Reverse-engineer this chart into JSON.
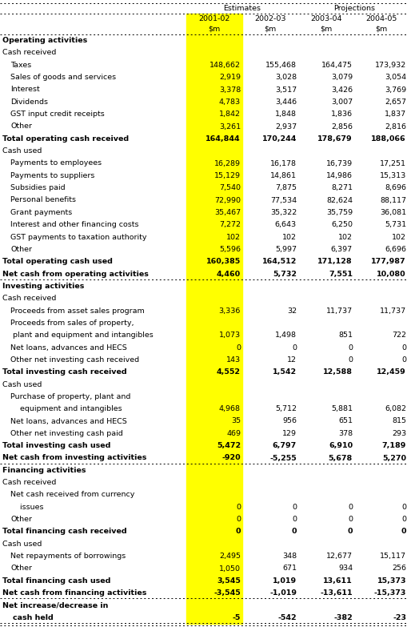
{
  "rows": [
    {
      "label": "Operating activities",
      "values": [
        "",
        "",
        "",
        ""
      ],
      "style": "bold_header",
      "indent": 0
    },
    {
      "label": "Cash received",
      "values": [
        "",
        "",
        "",
        ""
      ],
      "style": "normal",
      "indent": 0
    },
    {
      "label": "Taxes",
      "values": [
        "148,662",
        "155,468",
        "164,475",
        "173,932"
      ],
      "style": "normal",
      "indent": 1
    },
    {
      "label": "Sales of goods and services",
      "values": [
        "2,919",
        "3,028",
        "3,079",
        "3,054"
      ],
      "style": "normal",
      "indent": 1
    },
    {
      "label": "Interest",
      "values": [
        "3,378",
        "3,517",
        "3,426",
        "3,769"
      ],
      "style": "normal",
      "indent": 1
    },
    {
      "label": "Dividends",
      "values": [
        "4,783",
        "3,446",
        "3,007",
        "2,657"
      ],
      "style": "normal",
      "indent": 1
    },
    {
      "label": "GST input credit receipts",
      "values": [
        "1,842",
        "1,848",
        "1,836",
        "1,837"
      ],
      "style": "normal",
      "indent": 1
    },
    {
      "label": "Other",
      "values": [
        "3,261",
        "2,937",
        "2,856",
        "2,816"
      ],
      "style": "normal",
      "indent": 1
    },
    {
      "label": "Total operating cash received",
      "values": [
        "164,844",
        "170,244",
        "178,679",
        "188,066"
      ],
      "style": "bold",
      "indent": 0
    },
    {
      "label": "Cash used",
      "values": [
        "",
        "",
        "",
        ""
      ],
      "style": "normal",
      "indent": 0
    },
    {
      "label": "Payments to employees",
      "values": [
        "16,289",
        "16,178",
        "16,739",
        "17,251"
      ],
      "style": "normal",
      "indent": 1
    },
    {
      "label": "Payments to suppliers",
      "values": [
        "15,129",
        "14,861",
        "14,986",
        "15,313"
      ],
      "style": "normal",
      "indent": 1
    },
    {
      "label": "Subsidies paid",
      "values": [
        "7,540",
        "7,875",
        "8,271",
        "8,696"
      ],
      "style": "normal",
      "indent": 1
    },
    {
      "label": "Personal benefits",
      "values": [
        "72,990",
        "77,534",
        "82,624",
        "88,117"
      ],
      "style": "normal",
      "indent": 1
    },
    {
      "label": "Grant payments",
      "values": [
        "35,467",
        "35,322",
        "35,759",
        "36,081"
      ],
      "style": "normal",
      "indent": 1
    },
    {
      "label": "Interest and other financing costs",
      "values": [
        "7,272",
        "6,643",
        "6,250",
        "5,731"
      ],
      "style": "normal",
      "indent": 1
    },
    {
      "label": "GST payments to taxation authority",
      "values": [
        "102",
        "102",
        "102",
        "102"
      ],
      "style": "normal",
      "indent": 1
    },
    {
      "label": "Other",
      "values": [
        "5,596",
        "5,997",
        "6,397",
        "6,696"
      ],
      "style": "normal",
      "indent": 1
    },
    {
      "label": "Total operating cash used",
      "values": [
        "160,385",
        "164,512",
        "171,128",
        "177,987"
      ],
      "style": "bold",
      "indent": 0
    },
    {
      "label": "Net cash from operating activities",
      "values": [
        "4,460",
        "5,732",
        "7,551",
        "10,080"
      ],
      "style": "bold_line",
      "indent": 0
    },
    {
      "label": "Investing activities",
      "values": [
        "",
        "",
        "",
        ""
      ],
      "style": "bold_header",
      "indent": 0
    },
    {
      "label": "Cash received",
      "values": [
        "",
        "",
        "",
        ""
      ],
      "style": "normal",
      "indent": 0
    },
    {
      "label": "Proceeds from asset sales program",
      "values": [
        "3,336",
        "32",
        "11,737",
        "11,737"
      ],
      "style": "normal",
      "indent": 1
    },
    {
      "label": "Proceeds from sales of property,",
      "values": [
        "",
        "",
        "",
        ""
      ],
      "style": "normal",
      "indent": 1
    },
    {
      "label": " plant and equipment and intangibles",
      "values": [
        "1,073",
        "1,498",
        "851",
        "722"
      ],
      "style": "normal",
      "indent": 1
    },
    {
      "label": "Net loans, advances and HECS",
      "values": [
        "0",
        "0",
        "0",
        "0"
      ],
      "style": "normal",
      "indent": 1
    },
    {
      "label": "Other net investing cash received",
      "values": [
        "143",
        "12",
        "0",
        "0"
      ],
      "style": "normal",
      "indent": 1
    },
    {
      "label": "Total investing cash received",
      "values": [
        "4,552",
        "1,542",
        "12,588",
        "12,459"
      ],
      "style": "bold",
      "indent": 0
    },
    {
      "label": "Cash used",
      "values": [
        "",
        "",
        "",
        ""
      ],
      "style": "normal",
      "indent": 0
    },
    {
      "label": "Purchase of property, plant and",
      "values": [
        "",
        "",
        "",
        ""
      ],
      "style": "normal",
      "indent": 1
    },
    {
      "label": "    equipment and intangibles",
      "values": [
        "4,968",
        "5,712",
        "5,881",
        "6,082"
      ],
      "style": "normal",
      "indent": 1
    },
    {
      "label": "Net loans, advances and HECS",
      "values": [
        "35",
        "956",
        "651",
        "815"
      ],
      "style": "normal",
      "indent": 1
    },
    {
      "label": "Other net investing cash paid",
      "values": [
        "469",
        "129",
        "378",
        "293"
      ],
      "style": "normal",
      "indent": 1
    },
    {
      "label": "Total investing cash used",
      "values": [
        "5,472",
        "6,797",
        "6,910",
        "7,189"
      ],
      "style": "bold",
      "indent": 0
    },
    {
      "label": "Net cash from investing activities",
      "values": [
        "-920",
        "-5,255",
        "5,678",
        "5,270"
      ],
      "style": "bold_line",
      "indent": 0
    },
    {
      "label": "Financing activities",
      "values": [
        "",
        "",
        "",
        ""
      ],
      "style": "bold_header",
      "indent": 0
    },
    {
      "label": "Cash received",
      "values": [
        "",
        "",
        "",
        ""
      ],
      "style": "normal",
      "indent": 0
    },
    {
      "label": "Net cash received from currency",
      "values": [
        "",
        "",
        "",
        ""
      ],
      "style": "normal",
      "indent": 1
    },
    {
      "label": "    issues",
      "values": [
        "0",
        "0",
        "0",
        "0"
      ],
      "style": "normal",
      "indent": 1
    },
    {
      "label": "Other",
      "values": [
        "0",
        "0",
        "0",
        "0"
      ],
      "style": "normal",
      "indent": 1
    },
    {
      "label": "Total financing cash received",
      "values": [
        "0",
        "0",
        "0",
        "0"
      ],
      "style": "bold",
      "indent": 0
    },
    {
      "label": "Cash used",
      "values": [
        "",
        "",
        "",
        ""
      ],
      "style": "normal",
      "indent": 0
    },
    {
      "label": "Net repayments of borrowings",
      "values": [
        "2,495",
        "348",
        "12,677",
        "15,117"
      ],
      "style": "normal",
      "indent": 1
    },
    {
      "label": "Other",
      "values": [
        "1,050",
        "671",
        "934",
        "256"
      ],
      "style": "normal",
      "indent": 1
    },
    {
      "label": "Total financing cash used",
      "values": [
        "3,545",
        "1,019",
        "13,611",
        "15,373"
      ],
      "style": "bold",
      "indent": 0
    },
    {
      "label": "Net cash from financing activities",
      "values": [
        "-3,545",
        "-1,019",
        "-13,611",
        "-15,373"
      ],
      "style": "bold_line",
      "indent": 0
    },
    {
      "label": "Net increase/decrease in",
      "values": [
        "",
        "",
        "",
        ""
      ],
      "style": "bold",
      "indent": 0
    },
    {
      "label": "    cash held",
      "values": [
        "-5",
        "-542",
        "-382",
        "-23"
      ],
      "style": "bold_lastline",
      "indent": 0
    }
  ],
  "yellow_color": "#ffff00",
  "bg_color": "#ffffff",
  "font_size": 6.8,
  "bold_font_size": 6.8
}
